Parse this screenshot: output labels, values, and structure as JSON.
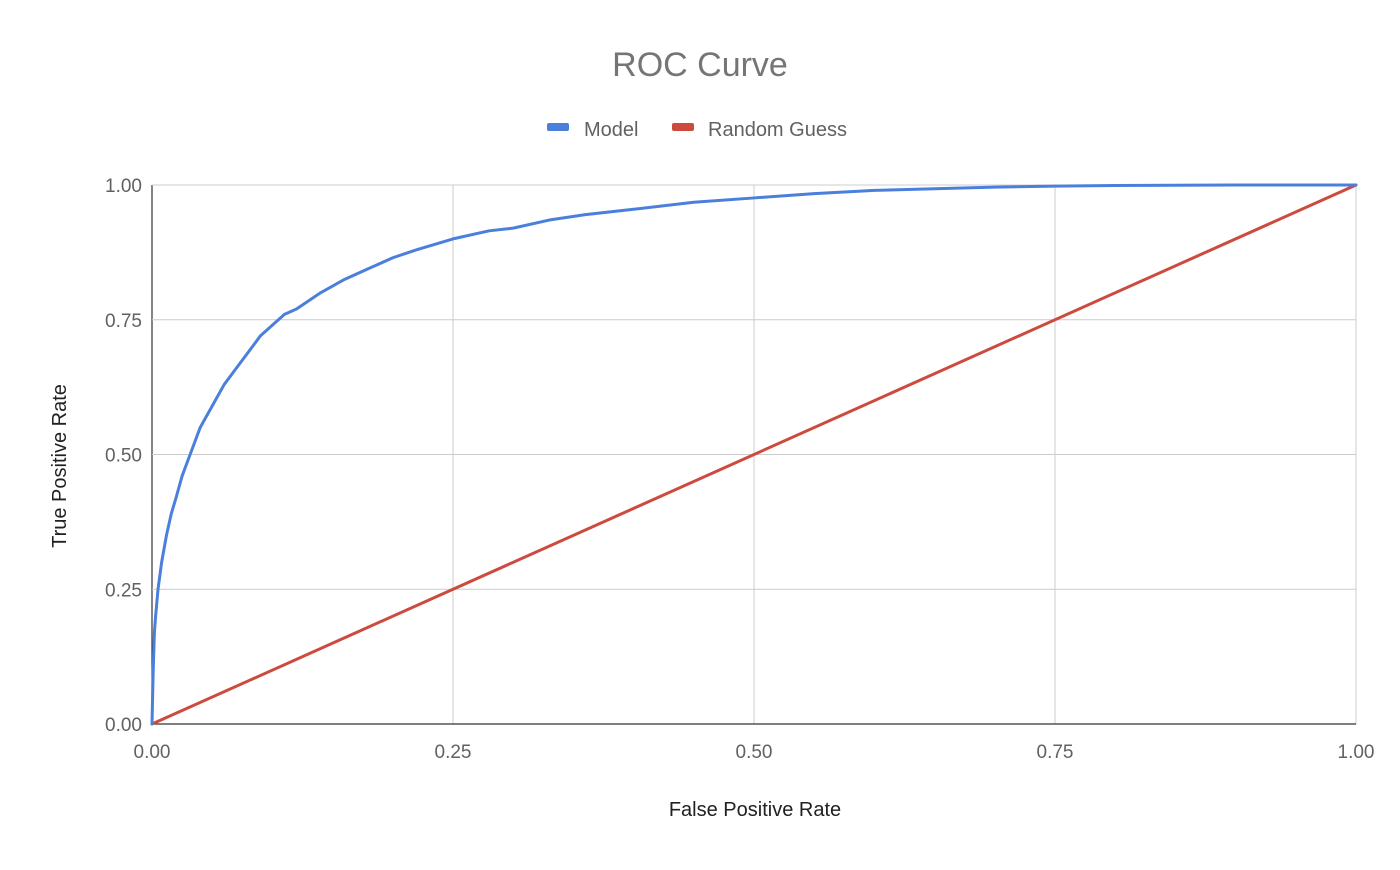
{
  "chart_data": {
    "type": "line",
    "title": "ROC Curve",
    "xlabel": "False Positive Rate",
    "ylabel": "True Positive Rate",
    "xlim": [
      0,
      1
    ],
    "ylim": [
      0,
      1
    ],
    "x_ticks": [
      "0.00",
      "0.25",
      "0.50",
      "0.75",
      "1.00"
    ],
    "y_ticks": [
      "0.00",
      "0.25",
      "0.50",
      "0.75",
      "1.00"
    ],
    "grid": true,
    "legend_position": "top",
    "series": [
      {
        "name": "Model",
        "color": "#4a7fdc",
        "x": [
          0.0,
          0.001,
          0.002,
          0.003,
          0.005,
          0.008,
          0.012,
          0.016,
          0.02,
          0.025,
          0.03,
          0.035,
          0.04,
          0.045,
          0.05,
          0.06,
          0.07,
          0.08,
          0.09,
          0.1,
          0.11,
          0.12,
          0.13,
          0.14,
          0.16,
          0.18,
          0.2,
          0.22,
          0.25,
          0.28,
          0.3,
          0.33,
          0.36,
          0.4,
          0.45,
          0.5,
          0.55,
          0.6,
          0.65,
          0.7,
          0.75,
          0.8,
          0.9,
          1.0
        ],
        "y": [
          0.0,
          0.1,
          0.17,
          0.2,
          0.25,
          0.3,
          0.35,
          0.39,
          0.42,
          0.46,
          0.49,
          0.52,
          0.55,
          0.57,
          0.59,
          0.63,
          0.66,
          0.69,
          0.72,
          0.74,
          0.76,
          0.77,
          0.785,
          0.8,
          0.825,
          0.845,
          0.865,
          0.88,
          0.9,
          0.915,
          0.92,
          0.935,
          0.945,
          0.955,
          0.968,
          0.976,
          0.984,
          0.99,
          0.993,
          0.996,
          0.998,
          0.999,
          1.0,
          1.0
        ]
      },
      {
        "name": "Random Guess",
        "color": "#cc4b3e",
        "x": [
          0.0,
          1.0
        ],
        "y": [
          0.0,
          1.0
        ]
      }
    ]
  }
}
